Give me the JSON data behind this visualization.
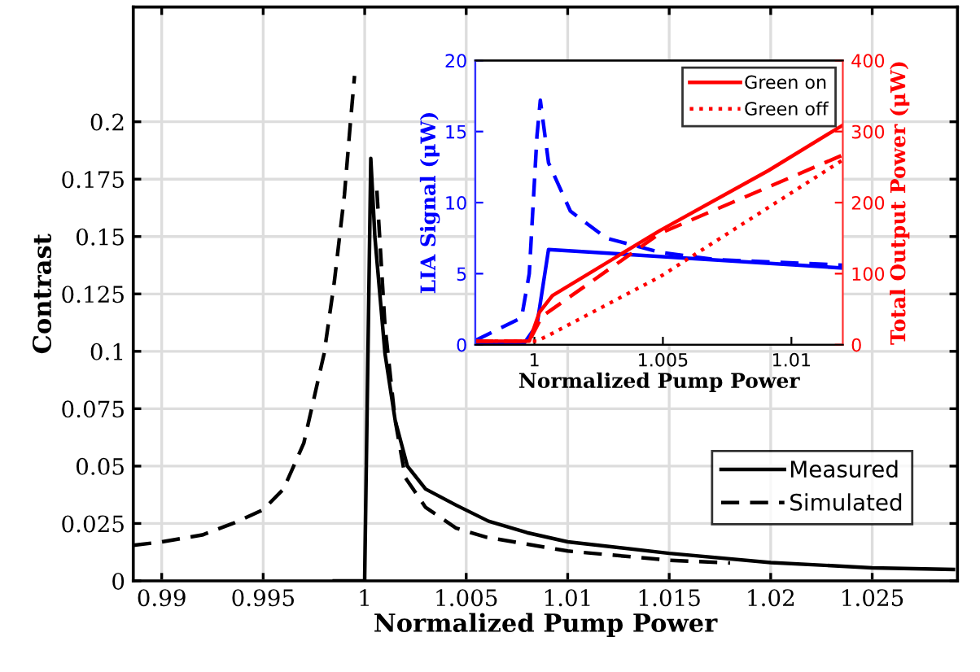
{
  "chart_data": [
    {
      "type": "line",
      "xlabel": "Normalized Pump Power",
      "ylabel": "Contrast",
      "xlim": [
        0.9886,
        1.0292
      ],
      "ylim": [
        0,
        0.25
      ],
      "xticks": [
        0.99,
        0.995,
        1,
        1.005,
        1.01,
        1.015,
        1.02,
        1.025
      ],
      "yticks": [
        0,
        0.025,
        0.05,
        0.075,
        0.1,
        0.125,
        0.15,
        0.175,
        0.2
      ],
      "grid": true,
      "legend": "bottom right",
      "series": [
        {
          "name": "Measured",
          "color": "#000000",
          "line_style": "solid",
          "x": [
            0.9985,
            1.0,
            1.0,
            1.0003,
            1.0005,
            1.001,
            1.0015,
            1.0021,
            1.003,
            1.0045,
            1.0061,
            1.008,
            1.01,
            1.015,
            1.02,
            1.025,
            1.029
          ],
          "values": [
            0,
            0,
            0.002,
            0.184,
            0.15,
            0.099,
            0.07,
            0.05,
            0.04,
            0.033,
            0.026,
            0.021,
            0.017,
            0.012,
            0.008,
            0.0057,
            0.005
          ]
        },
        {
          "name": "Simulated",
          "color": "#000000",
          "line_style": "dashed",
          "x": [
            0.9886,
            0.99,
            0.992,
            0.9935,
            0.995,
            0.996,
            0.997,
            0.998,
            0.9985,
            0.999,
            0.9993,
            0.9995,
            1.0001,
            1.0003,
            1.0006,
            1.001,
            1.0015,
            1.002,
            1.003,
            1.0045,
            1.006,
            1.01,
            1.015,
            1.018
          ],
          "values": [
            0.0155,
            0.017,
            0.02,
            0.025,
            0.031,
            0.04,
            0.06,
            0.099,
            0.13,
            0.168,
            0.2,
            0.22,
            null,
            null,
            0.17,
            0.111,
            0.07,
            0.045,
            0.032,
            0.023,
            0.019,
            0.013,
            0.009,
            0.0078
          ]
        }
      ]
    },
    {
      "type": "line",
      "xlabel": "Normalized Pump Power",
      "ylabel": "LIA Signal (μW)",
      "y2label": "Total Output Power (μW)",
      "xlim": [
        0.9977,
        1.012
      ],
      "ylim": [
        0,
        20
      ],
      "y2lim": [
        0,
        400
      ],
      "xticks": [
        1,
        1.005,
        1.01
      ],
      "yticks": [
        0,
        5,
        10,
        15,
        20
      ],
      "y2ticks": [
        0,
        100,
        200,
        300,
        400
      ],
      "legend": "top right",
      "series": [
        {
          "color": "#0000ff",
          "line_style": "solid",
          "x": [
            0.9977,
            0.9996,
            1.0001,
            1.00055,
            1.012
          ],
          "values": [
            0.1,
            0.1,
            1.4,
            6.7,
            5.4
          ]
        },
        {
          "color": "#0000ff",
          "line_style": "dashed",
          "x": [
            0.9977,
            0.9995,
            0.9998,
            1.0001,
            1.00023,
            1.00055,
            1.0014,
            1.0028,
            1.0049,
            1.007,
            1.012
          ],
          "values": [
            0.3,
            1.9,
            5.0,
            14.7,
            17.2,
            12.8,
            9.4,
            7.5,
            6.5,
            6.0,
            5.6
          ]
        },
        {
          "name": "Green on",
          "color": "#ff0000",
          "axis": "y2",
          "line_style": "solid",
          "x": [
            0.9977,
            0.9998,
            1.0002,
            1.0007,
            1.0049,
            1.0091,
            1.012
          ],
          "values": [
            5,
            5,
            46,
            69,
            161,
            245,
            309
          ]
        },
        {
          "color": "#ff0000",
          "axis": "y2",
          "line_style": "dashed",
          "x": [
            0.9977,
            0.9998,
            1.0003,
            1.0049,
            1.0091,
            1.012
          ],
          "values": [
            5,
            5,
            40,
            157,
            222,
            267
          ]
        },
        {
          "name": "Green off",
          "color": "#ff0000",
          "axis": "y2",
          "line_style": "dotted",
          "x": [
            0.9977,
            1.0001,
            1.0007,
            1.0049,
            1.012
          ],
          "values": [
            5,
            5,
            16,
            96,
            260
          ]
        }
      ]
    }
  ]
}
